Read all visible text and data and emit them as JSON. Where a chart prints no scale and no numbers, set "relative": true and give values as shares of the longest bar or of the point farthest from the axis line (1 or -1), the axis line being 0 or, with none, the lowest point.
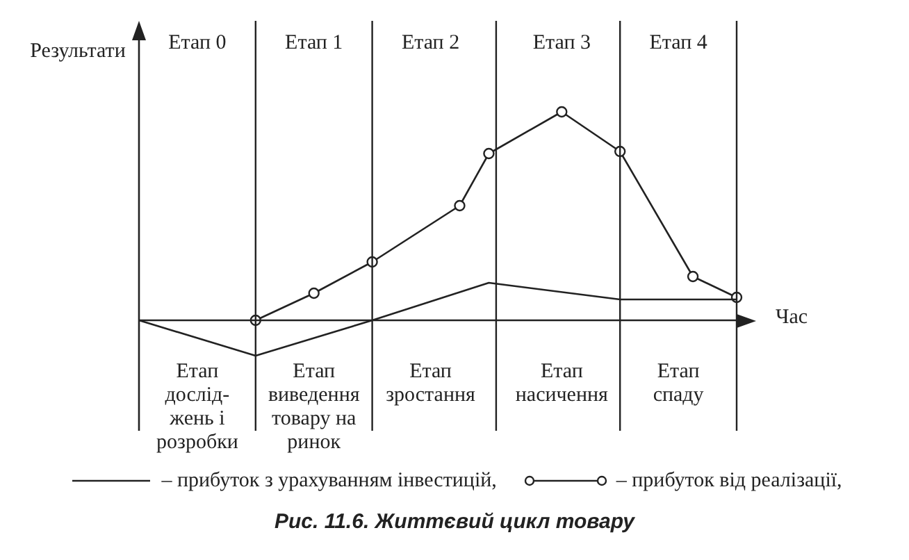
{
  "chart_data": {
    "type": "line",
    "relative": true,
    "title": "Рис. 11.6. Життєвий цикл товару",
    "ylabel": "Результати",
    "xlabel": "Час",
    "legend": "bottom",
    "grid": "x",
    "categories": [
      null,
      null,
      null,
      null,
      "Етап 0",
      null,
      null,
      null,
      null,
      null,
      null,
      null,
      "Етап 1",
      null,
      null,
      null,
      null,
      null,
      null,
      null,
      "Етап 2",
      null,
      null,
      null,
      null,
      null,
      null,
      null,
      null,
      "Етап 3",
      null,
      null,
      null,
      null,
      null,
      null,
      null,
      "Етап 4",
      null,
      null,
      null,
      null
    ],
    "annotations": [
      "Етап\nдослід-\nжень і\nрозробки",
      "Етап\nвиведення\nтовару на\nринок",
      "Етап\nзростання",
      "Етап\nнасичення",
      "Етап\nспаду"
    ],
    "series": [
      {
        "name": "– прибуток з урахуванням інвестицій,",
        "color": "#222222",
        "marker": "none",
        "values": [
          0,
          null,
          null,
          null,
          null,
          null,
          null,
          null,
          -0.17,
          null,
          null,
          null,
          null,
          null,
          null,
          null,
          0,
          null,
          null,
          null,
          null,
          null,
          null,
          null,
          0.18,
          null,
          null,
          null,
          null,
          null,
          null,
          null,
          null,
          0.1,
          null,
          null,
          null,
          null,
          null,
          null,
          null,
          0.1
        ]
      },
      {
        "name": "– прибуток від реалізації,",
        "color": "#222222",
        "marker": "circle",
        "values": [
          null,
          null,
          null,
          null,
          null,
          null,
          null,
          null,
          0,
          null,
          null,
          null,
          0.13,
          null,
          null,
          null,
          0.28,
          null,
          null,
          null,
          null,
          null,
          0.55,
          null,
          0.8,
          null,
          null,
          null,
          null,
          1,
          null,
          null,
          null,
          0.81,
          null,
          null,
          null,
          null,
          0.21,
          null,
          null,
          0.11
        ]
      }
    ]
  }
}
